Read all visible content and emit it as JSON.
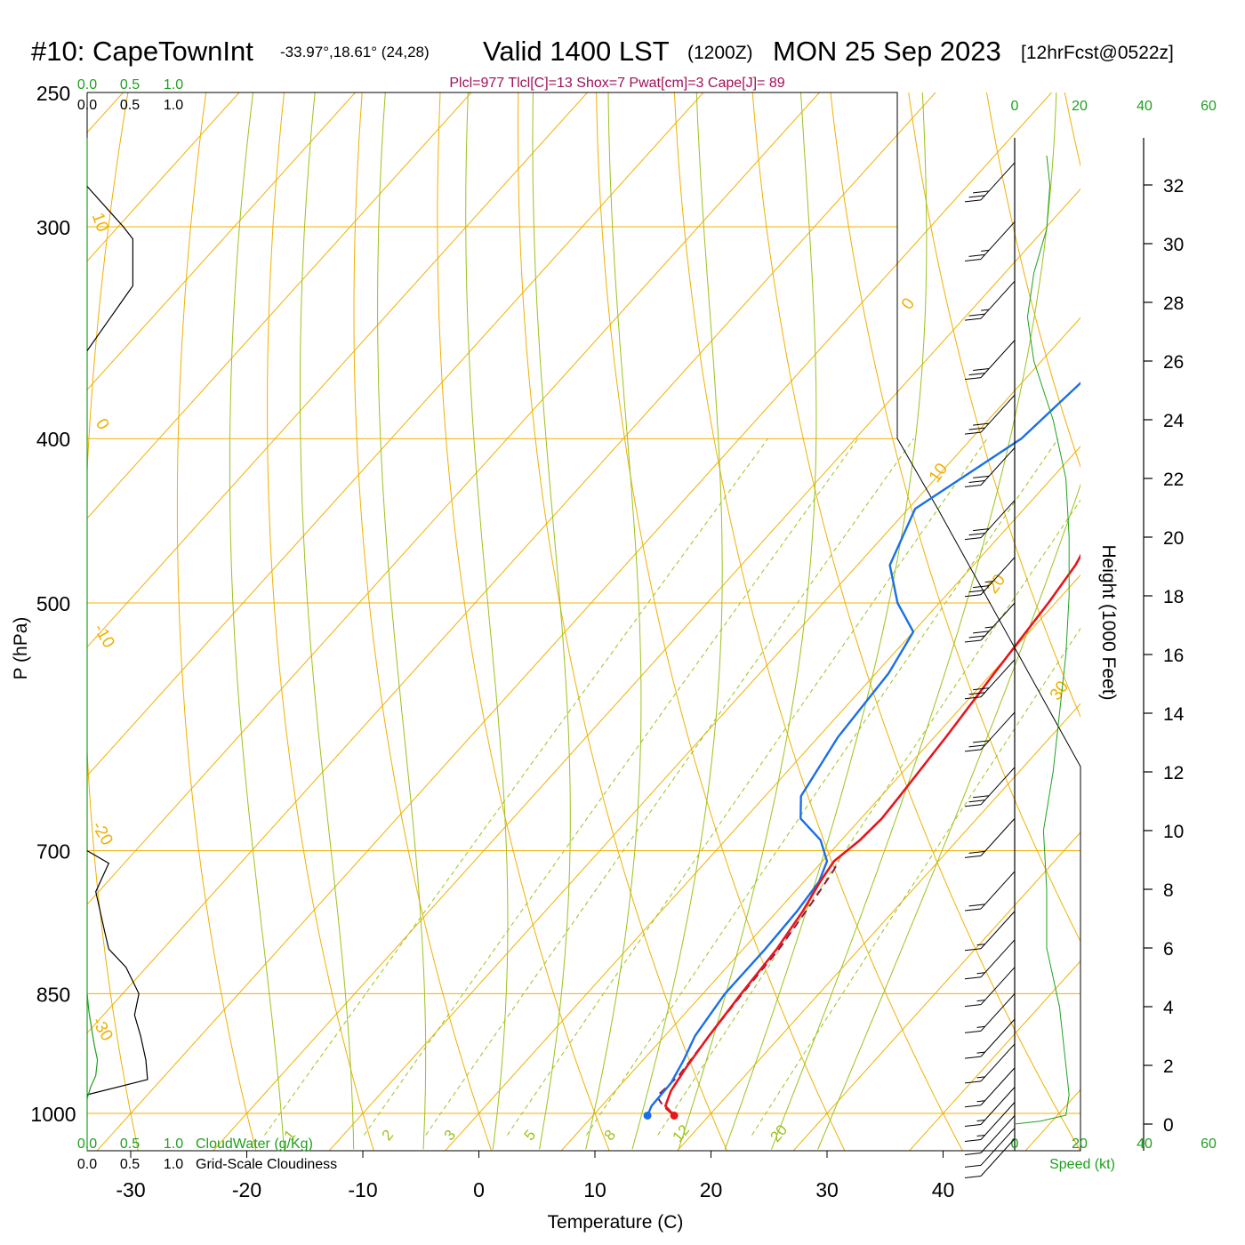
{
  "header": {
    "station": "#10: CapeTownInt",
    "coords": "-33.97°,18.61° (24,28)",
    "valid": "Valid 1400 LST",
    "utc": "(1200Z)",
    "date": "MON 25 Sep 2023",
    "forecast": "[12hrFcst@0522z]"
  },
  "indices": "Plcl=977 Tlcl[C]=13 Shox=7 Pwat[cm]=3 Cape[J]= 89",
  "colors": {
    "temperature": "#e8151b",
    "dewpoint": "#1a6fe6",
    "parcel": "#8b1a4a",
    "isobar": "#f0b000",
    "dry_adiabat": "#f0b000",
    "moist_adiabat": "#9ac21a",
    "mixing_ratio": "#9ac21a",
    "cloud_water": "#1ea01e",
    "scale_green": "#1ea01e",
    "index_text": "#a0105a"
  },
  "chart_data": {
    "type": "skew-t log-p sounding",
    "xlabel": "Temperature (C)",
    "ylabel": "P (hPa)",
    "right_axis_label": "Height (1000 Feet)",
    "x_ticks": [
      "-30",
      "-20",
      "-10",
      "0",
      "10",
      "20",
      "30",
      "40"
    ],
    "y_ticks": [
      "250",
      "300",
      "400",
      "500",
      "700",
      "850",
      "1000"
    ],
    "height_ticks": [
      "0",
      "2",
      "4",
      "6",
      "8",
      "10",
      "12",
      "14",
      "16",
      "18",
      "20",
      "22",
      "24",
      "26",
      "28",
      "30",
      "32"
    ],
    "speed_axis": {
      "label": "Speed (kt)",
      "ticks": [
        "0",
        "20",
        "40",
        "60"
      ]
    },
    "cloud_axes": {
      "top_green": [
        "0.0",
        "0.5",
        "1.0"
      ],
      "top_black": [
        "0.0",
        "0.5",
        "1.0"
      ],
      "bottom_green": [
        "0.0",
        "0.5",
        "1.0"
      ],
      "bottom_black": [
        "0.0",
        "0.5",
        "1.0"
      ],
      "cloud_water_label": "CloudWater (g/Kg)",
      "cloudiness_label": "Grid-Scale Cloudiness"
    },
    "dry_adiabat_labels": [
      "10",
      "0",
      "-10",
      "-20",
      "-30",
      "0",
      "10",
      "20",
      "30"
    ],
    "mixing_ratio_labels": [
      "1",
      "2",
      "3",
      "5",
      "8",
      "12",
      "20"
    ],
    "temperature_profile": [
      {
        "p": 1003,
        "t": 17.0
      },
      {
        "p": 990,
        "t": 15.5
      },
      {
        "p": 970,
        "t": 14.8
      },
      {
        "p": 940,
        "t": 14.3
      },
      {
        "p": 900,
        "t": 13.8
      },
      {
        "p": 850,
        "t": 13.3
      },
      {
        "p": 800,
        "t": 12.9
      },
      {
        "p": 760,
        "t": 12.2
      },
      {
        "p": 730,
        "t": 11.4
      },
      {
        "p": 710,
        "t": 11.0
      },
      {
        "p": 690,
        "t": 11.6
      },
      {
        "p": 670,
        "t": 11.8
      },
      {
        "p": 650,
        "t": 11.6
      },
      {
        "p": 600,
        "t": 11.0
      },
      {
        "p": 550,
        "t": 10.2
      },
      {
        "p": 500,
        "t": 9.4
      },
      {
        "p": 475,
        "t": 8.8
      },
      {
        "p": 450,
        "t": 7.6
      },
      {
        "p": 425,
        "t": 6.6
      },
      {
        "p": 400,
        "t": 5.4
      },
      {
        "p": 375,
        "t": 3.8
      },
      {
        "p": 350,
        "t": 2.4
      },
      {
        "p": 325,
        "t": 0.9
      },
      {
        "p": 310,
        "t": -0.4
      },
      {
        "p": 300,
        "t": -1.6
      },
      {
        "p": 290,
        "t": -2.6
      },
      {
        "p": 275,
        "t": -3.0
      },
      {
        "p": 265,
        "t": -2.4
      }
    ],
    "dewpoint_profile": [
      {
        "p": 1003,
        "t": 14.7
      },
      {
        "p": 990,
        "t": 14.3
      },
      {
        "p": 960,
        "t": 14.2
      },
      {
        "p": 930,
        "t": 13.5
      },
      {
        "p": 900,
        "t": 12.6
      },
      {
        "p": 850,
        "t": 11.9
      },
      {
        "p": 800,
        "t": 11.9
      },
      {
        "p": 760,
        "t": 11.7
      },
      {
        "p": 730,
        "t": 11.3
      },
      {
        "p": 710,
        "t": 10.4
      },
      {
        "p": 690,
        "t": 8.2
      },
      {
        "p": 670,
        "t": 4.8
      },
      {
        "p": 650,
        "t": 3.1
      },
      {
        "p": 600,
        "t": 1.7
      },
      {
        "p": 550,
        "t": 1.1
      },
      {
        "p": 520,
        "t": 0.0
      },
      {
        "p": 500,
        "t": -3.6
      },
      {
        "p": 475,
        "t": -7.2
      },
      {
        "p": 440,
        "t": -9.4
      },
      {
        "p": 400,
        "t": -5.7
      },
      {
        "p": 370,
        "t": -4.9
      },
      {
        "p": 350,
        "t": -3.5
      },
      {
        "p": 330,
        "t": -4.6
      },
      {
        "p": 300,
        "t": -8.2
      },
      {
        "p": 285,
        "t": -10.8
      },
      {
        "p": 265,
        "t": -15.0
      }
    ],
    "parcel_profile": [
      {
        "p": 1000,
        "t": 16.6
      },
      {
        "p": 990,
        "t": 15.3
      },
      {
        "p": 977,
        "t": 14.0
      },
      {
        "p": 950,
        "t": 14.3
      },
      {
        "p": 900,
        "t": 13.8
      },
      {
        "p": 850,
        "t": 13.4
      },
      {
        "p": 800,
        "t": 13.1
      },
      {
        "p": 750,
        "t": 12.3
      },
      {
        "p": 720,
        "t": 11.7
      },
      {
        "p": 710,
        "t": 11.4
      }
    ],
    "surface_temperature": 17.0,
    "surface_dewpoint": 14.7,
    "wind_speed_profile": [
      {
        "h": 0.0,
        "s": 0
      },
      {
        "h": 0.1,
        "s": 8
      },
      {
        "h": 0.3,
        "s": 16
      },
      {
        "h": 1.0,
        "s": 17
      },
      {
        "h": 2.0,
        "s": 16
      },
      {
        "h": 3.0,
        "s": 15
      },
      {
        "h": 4.0,
        "s": 14
      },
      {
        "h": 5.0,
        "s": 12
      },
      {
        "h": 6.0,
        "s": 10
      },
      {
        "h": 8.0,
        "s": 10
      },
      {
        "h": 10.0,
        "s": 9
      },
      {
        "h": 12.0,
        "s": 12
      },
      {
        "h": 14.0,
        "s": 14
      },
      {
        "h": 16.0,
        "s": 16
      },
      {
        "h": 18.0,
        "s": 17
      },
      {
        "h": 20.0,
        "s": 17
      },
      {
        "h": 22.0,
        "s": 16
      },
      {
        "h": 24.0,
        "s": 12
      },
      {
        "h": 26.0,
        "s": 6
      },
      {
        "h": 27.5,
        "s": 4
      },
      {
        "h": 29.0,
        "s": 6
      },
      {
        "h": 30.5,
        "s": 10
      },
      {
        "h": 32.0,
        "s": 11
      },
      {
        "h": 33.0,
        "s": 10
      }
    ],
    "wind_barbs": [
      {
        "p": 275,
        "speed": 30
      },
      {
        "p": 298,
        "speed": 25
      },
      {
        "p": 323,
        "speed": 25
      },
      {
        "p": 350,
        "speed": 30
      },
      {
        "p": 377,
        "speed": 30
      },
      {
        "p": 405,
        "speed": 30
      },
      {
        "p": 435,
        "speed": 30
      },
      {
        "p": 470,
        "speed": 35
      },
      {
        "p": 500,
        "speed": 35
      },
      {
        "p": 540,
        "speed": 30
      },
      {
        "p": 580,
        "speed": 30
      },
      {
        "p": 625,
        "speed": 30
      },
      {
        "p": 670,
        "speed": 20
      },
      {
        "p": 720,
        "speed": 20
      },
      {
        "p": 760,
        "speed": 15
      },
      {
        "p": 790,
        "speed": 15
      },
      {
        "p": 820,
        "speed": 15
      },
      {
        "p": 850,
        "speed": 15
      },
      {
        "p": 880,
        "speed": 15
      },
      {
        "p": 910,
        "speed": 15
      },
      {
        "p": 940,
        "speed": 15
      },
      {
        "p": 965,
        "speed": 15
      },
      {
        "p": 985,
        "speed": 15
      },
      {
        "p": 1003,
        "speed": 10
      },
      {
        "p": 1020,
        "speed": 10
      },
      {
        "p": 1035,
        "speed": 10
      }
    ],
    "cloud_water_profile": [
      {
        "p": 850,
        "v": 0.0
      },
      {
        "p": 870,
        "v": 0.02
      },
      {
        "p": 890,
        "v": 0.05
      },
      {
        "p": 910,
        "v": 0.08
      },
      {
        "p": 930,
        "v": 0.12
      },
      {
        "p": 950,
        "v": 0.1
      },
      {
        "p": 965,
        "v": 0.04
      },
      {
        "p": 980,
        "v": 0.0
      }
    ],
    "cloudiness_profile": [
      {
        "p": 284,
        "v": 0.0
      },
      {
        "p": 300,
        "v": 0.42
      },
      {
        "p": 305,
        "v": 0.53
      },
      {
        "p": 325,
        "v": 0.53
      },
      {
        "p": 355,
        "v": 0.0
      },
      {
        "p": 700,
        "v": 0.0
      },
      {
        "p": 712,
        "v": 0.25
      },
      {
        "p": 740,
        "v": 0.1
      },
      {
        "p": 780,
        "v": 0.2
      },
      {
        "p": 800,
        "v": 0.25
      },
      {
        "p": 820,
        "v": 0.45
      },
      {
        "p": 850,
        "v": 0.6
      },
      {
        "p": 875,
        "v": 0.55
      },
      {
        "p": 900,
        "v": 0.62
      },
      {
        "p": 930,
        "v": 0.68
      },
      {
        "p": 955,
        "v": 0.7
      },
      {
        "p": 975,
        "v": 0.0
      }
    ]
  }
}
